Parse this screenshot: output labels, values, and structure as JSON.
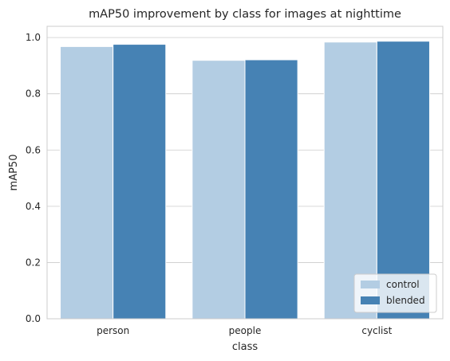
{
  "chart_data": {
    "type": "bar",
    "title": "mAP50 improvement by class for images at nighttime",
    "xlabel": "class",
    "ylabel": "mAP50",
    "categories": [
      "person",
      "people",
      "cyclist"
    ],
    "series": [
      {
        "name": "control",
        "values": [
          0.968,
          0.919,
          0.984
        ],
        "color": "#b3cde3"
      },
      {
        "name": "blended",
        "values": [
          0.976,
          0.921,
          0.987
        ],
        "color": "#4682b4"
      }
    ],
    "ylim": [
      0,
      1.04
    ],
    "yticks": [
      0.0,
      0.2,
      0.4,
      0.6,
      0.8,
      1.0
    ],
    "ytick_labels": [
      "0.0",
      "0.2",
      "0.4",
      "0.6",
      "0.8",
      "1.0"
    ],
    "grid": "y",
    "legend_position": "lower-right",
    "colors": {
      "grid": "#cccccc",
      "spine": "#cccccc",
      "text": "#262626",
      "background": "#ffffff"
    }
  }
}
